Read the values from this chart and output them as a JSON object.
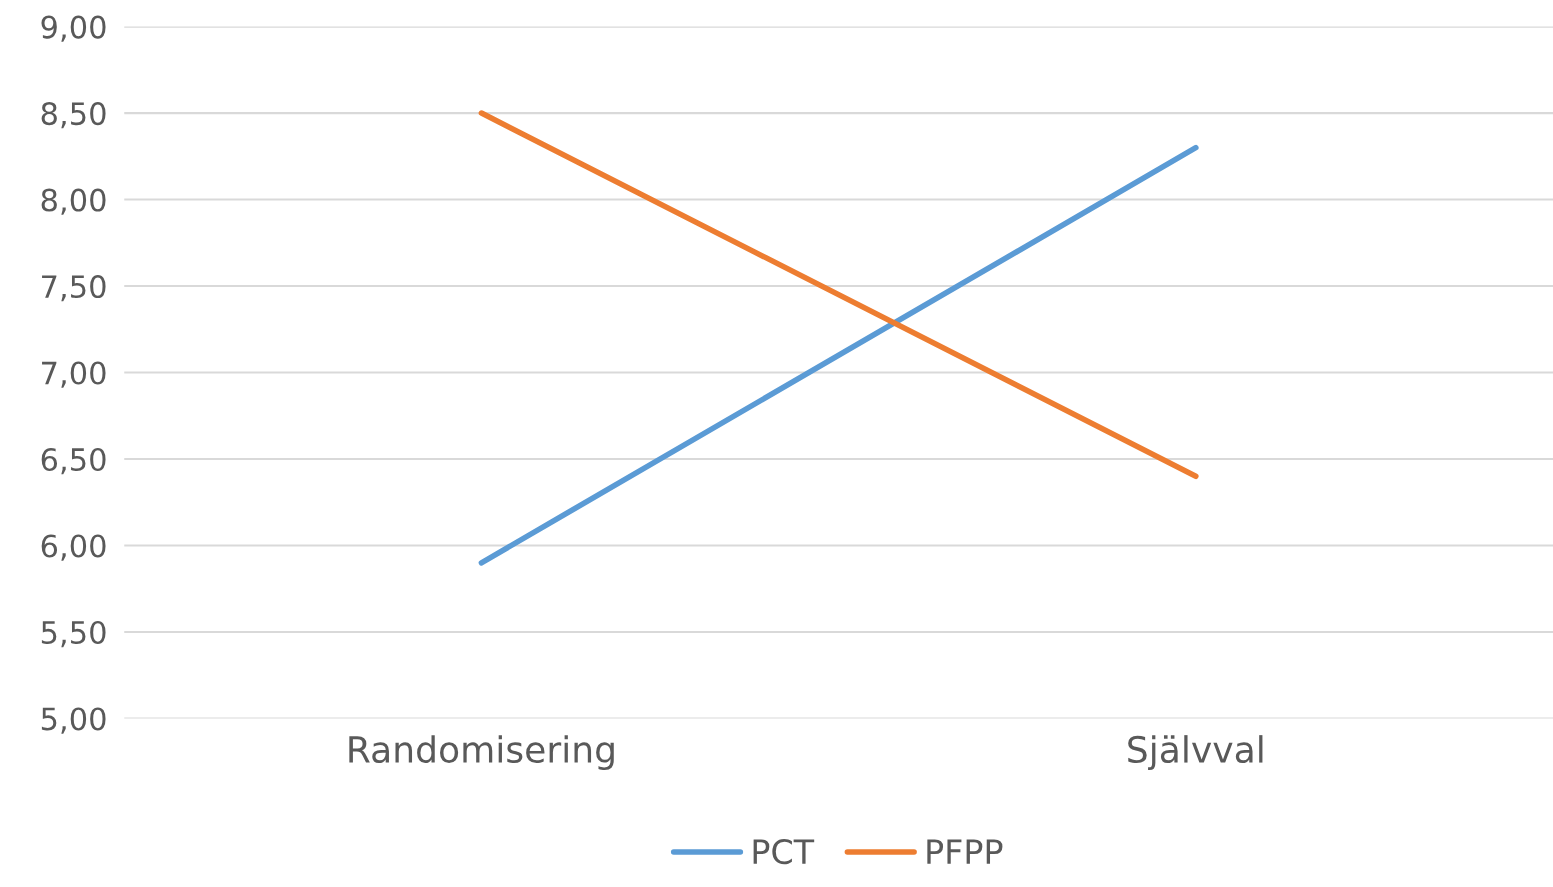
{
  "chart_data": {
    "type": "line",
    "categories": [
      "Randomisering",
      "Självval"
    ],
    "series": [
      {
        "name": "PCT",
        "color": "#5b9bd5",
        "values": [
          5.9,
          8.3
        ]
      },
      {
        "name": "PFPP",
        "color": "#ed7d31",
        "values": [
          8.5,
          6.4
        ]
      }
    ],
    "ylim": [
      5.0,
      9.0
    ],
    "yticks": [
      {
        "value": 5.0,
        "label": "5,00"
      },
      {
        "value": 5.5,
        "label": "5,50"
      },
      {
        "value": 6.0,
        "label": "6,00"
      },
      {
        "value": 6.5,
        "label": "6,50"
      },
      {
        "value": 7.0,
        "label": "7,00"
      },
      {
        "value": 7.5,
        "label": "7,50"
      },
      {
        "value": 8.0,
        "label": "8,00"
      },
      {
        "value": 8.5,
        "label": "8,50"
      },
      {
        "value": 9.0,
        "label": "9,00"
      }
    ],
    "grid": "y",
    "legend": "bottom",
    "marker": "none",
    "line_style": "solid"
  }
}
